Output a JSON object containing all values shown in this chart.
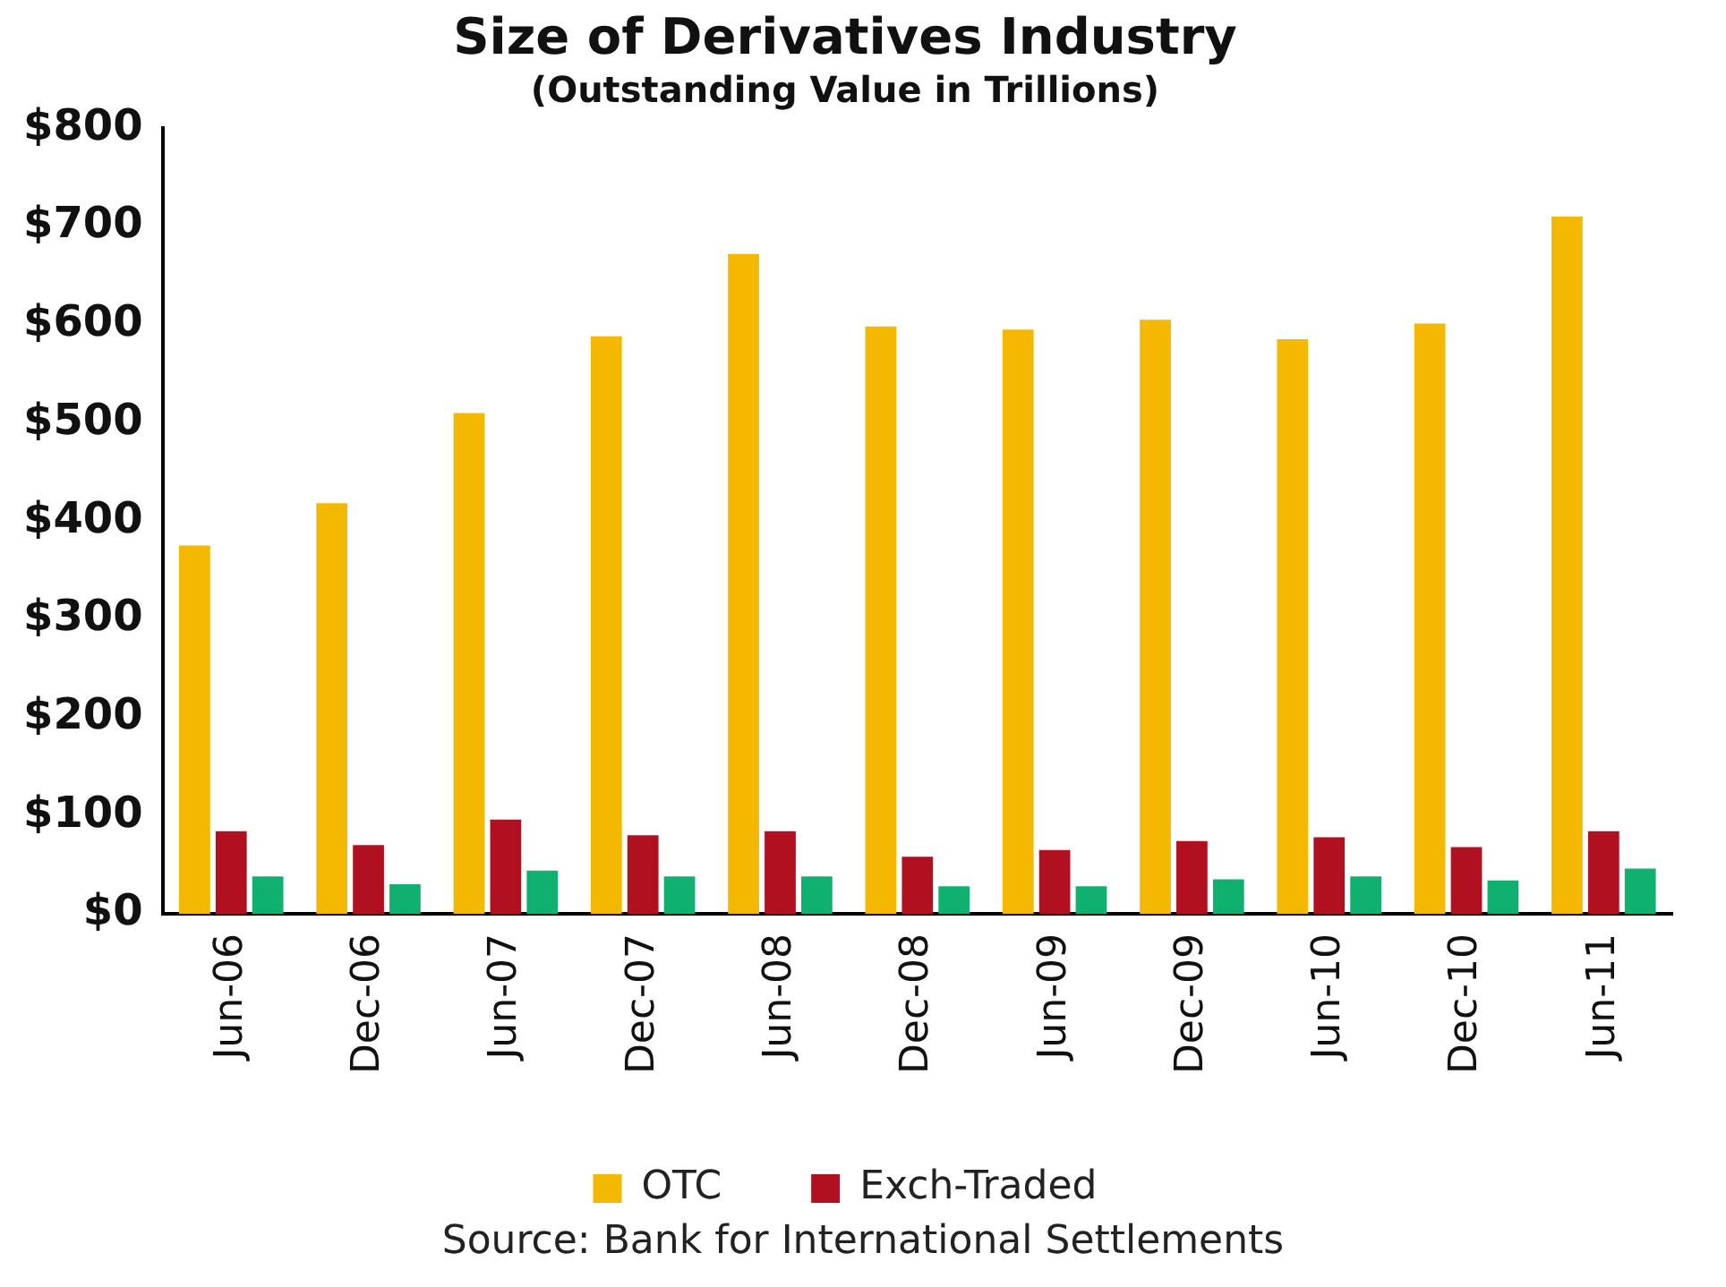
{
  "chart_data": {
    "type": "bar",
    "title": "Size of Derivatives Industry",
    "subtitle": "(Outstanding Value in Trillions)",
    "categories": [
      "Jun-06",
      "Dec-06",
      "Jun-07",
      "Dec-07",
      "Jun-08",
      "Dec-08",
      "Jun-09",
      "Dec-09",
      "Jun-10",
      "Dec-10",
      "Jun-11"
    ],
    "series": [
      {
        "name": "OTC",
        "color": "#f5b800",
        "values": [
          375,
          418,
          510,
          588,
          672,
          598,
          595,
          605,
          585,
          601,
          710
        ]
      },
      {
        "name": "Exch-Traded",
        "color": "#b01020",
        "values": [
          84,
          70,
          96,
          80,
          84,
          58,
          65,
          74,
          78,
          68,
          84
        ]
      },
      {
        "color": "#10b070",
        "values": [
          38,
          30,
          44,
          38,
          38,
          28,
          28,
          35,
          38,
          34,
          46
        ]
      }
    ],
    "ylim": [
      0,
      800
    ],
    "yticks": [
      {
        "value": 0,
        "label": "$0"
      },
      {
        "value": 100,
        "label": "$100"
      },
      {
        "value": 200,
        "label": "$200"
      },
      {
        "value": 300,
        "label": "$300"
      },
      {
        "value": 400,
        "label": "$400"
      },
      {
        "value": 500,
        "label": "$500"
      },
      {
        "value": 600,
        "label": "$600"
      },
      {
        "value": 700,
        "label": "$700"
      },
      {
        "value": 800,
        "label": "$800"
      }
    ],
    "grid": false,
    "legend": "bottom",
    "annotations": [
      "Source: Bank for International Settlements"
    ]
  }
}
